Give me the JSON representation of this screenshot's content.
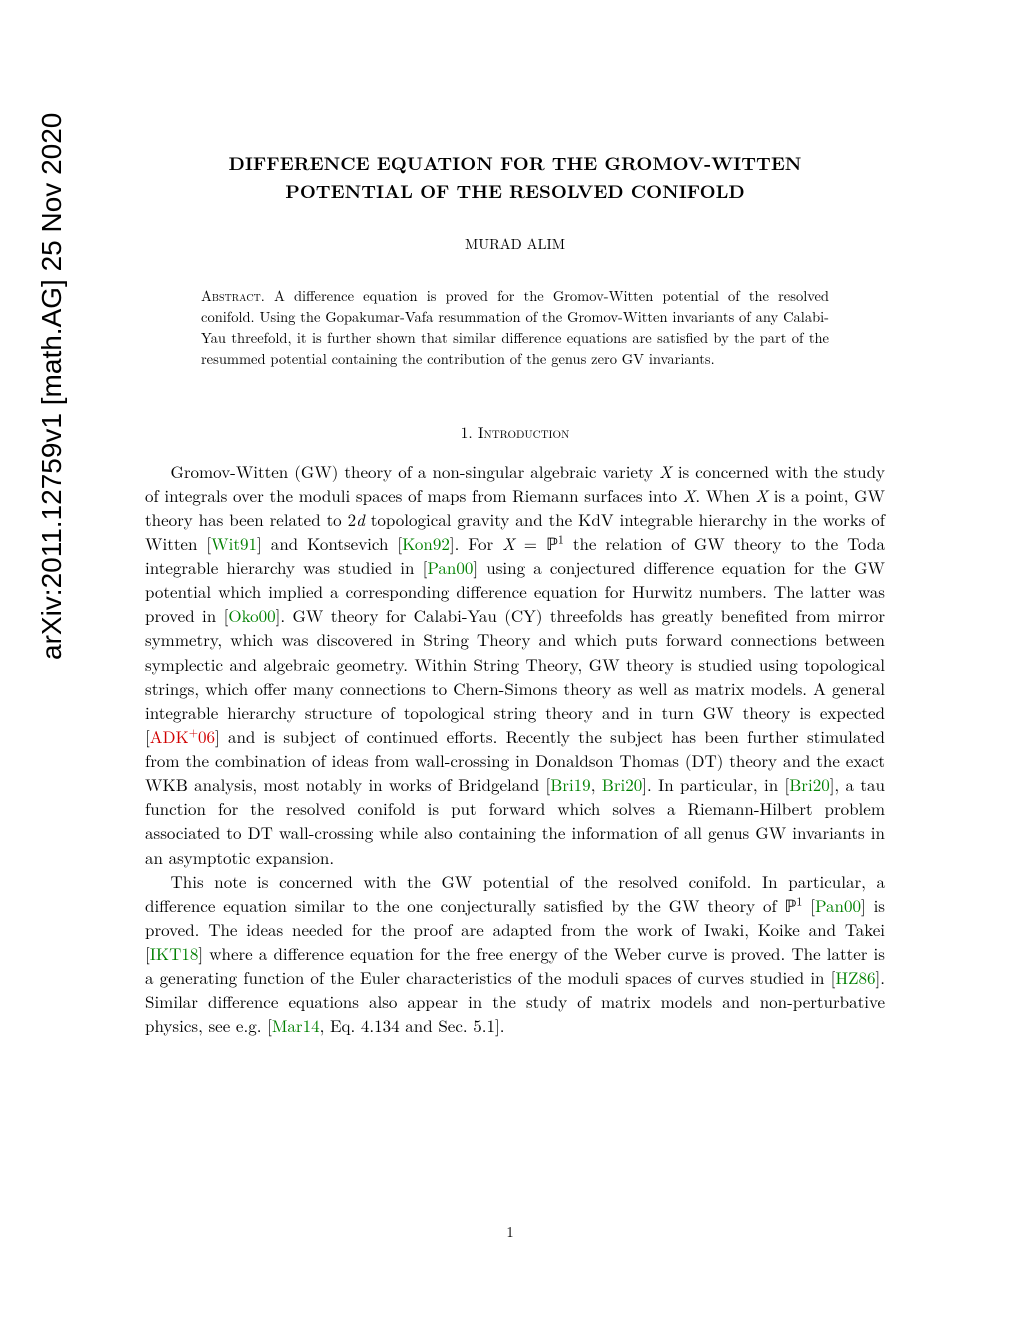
{
  "arxiv": {
    "id": "arXiv:2011.12759v1  [math.AG]  25 Nov 2020"
  },
  "title": {
    "line1": "DIFFERENCE EQUATION FOR THE GROMOV-WITTEN",
    "line2": "POTENTIAL OF THE RESOLVED CONIFOLD"
  },
  "author": "MURAD ALIM",
  "abstract": {
    "label": "Abstract.",
    "text": " A difference equation is proved for the Gromov-Witten potential of the resolved conifold. Using the Gopakumar-Vafa resummation of the Gromov-Witten invariants of any Calabi-Yau threefold, it is further shown that similar difference equations are satisfied by the part of the resummed potential containing the contribution of the genus zero GV invariants."
  },
  "section1": {
    "heading": "1. Introduction",
    "para1": {
      "t1": "Gromov-Witten (GW) theory of a non-singular algebraic variety ",
      "varX1": "X",
      "t2": " is concerned with the study of integrals over the moduli spaces of maps from Riemann surfaces into ",
      "varX2": "X",
      "t3": ". When ",
      "varX3": "X",
      "t4": " is a point, GW theory has been related to 2",
      "vard": "d",
      "t5": " topological gravity and the KdV integrable hierarchy in the works of Witten [",
      "cite1": "Wit91",
      "t6": "] and Kontsevich [",
      "cite2": "Kon92",
      "t7": "]. For ",
      "varX4": "X",
      "t8": " = ℙ",
      "sup1": "1",
      "t9": " the relation of GW theory to the Toda integrable hierarchy was studied in [",
      "cite3": "Pan00",
      "t10": "] using a conjectured difference equation for the GW potential which implied a corresponding difference equation for Hurwitz numbers. The latter was proved in [",
      "cite4": "Oko00",
      "t11": "]. GW theory for Calabi-Yau (CY) threefolds has greatly benefited from mirror symmetry, which was discovered in String Theory and which puts forward connections between symplectic and algebraic geometry. Within String Theory, GW theory is studied using topological strings, which offer many connections to Chern-Simons theory as well as matrix models. A general integrable hierarchy structure of topological string theory and in turn GW theory is expected [",
      "cite5": "ADK",
      "cite5sup": "+",
      "cite5b": "06",
      "t12": "] and is subject of continued efforts. Recently the subject has been further stimulated from the combination of ideas from wall-crossing in Donaldson Thomas (DT) theory and the exact WKB analysis, most notably in works of Bridgeland [",
      "cite6": "Bri19",
      "t13": ", ",
      "cite7": "Bri20",
      "t14": "]. In particular, in [",
      "cite8": "Bri20",
      "t15": "], a tau function for the resolved conifold is put forward which solves a Riemann-Hilbert problem associated to DT wall-crossing while also containing the information of all genus GW invariants in an asymptotic expansion."
    },
    "para2": {
      "t1": "This note is concerned with the GW potential of the resolved conifold. In particular, a difference equation similar to the one conjecturally satisfied by the GW theory of ℙ",
      "sup1": "1",
      "t2": " [",
      "cite1": "Pan00",
      "t3": "] is proved. The ideas needed for the proof are adapted from the work of Iwaki, Koike and Takei [",
      "cite2": "IKT18",
      "t4": "] where a difference equation for the free energy of the Weber curve is proved. The latter is a generating function of the Euler characteristics of the moduli spaces of curves studied in [",
      "cite3": "HZ86",
      "t5": "]. Similar difference equations also appear in the study of matrix models and non-perturbative physics, see e.g. [",
      "cite4": "Mar14",
      "t6": ", Eq. 4.134 and Sec. 5.1]."
    }
  },
  "pageNumber": "1"
}
